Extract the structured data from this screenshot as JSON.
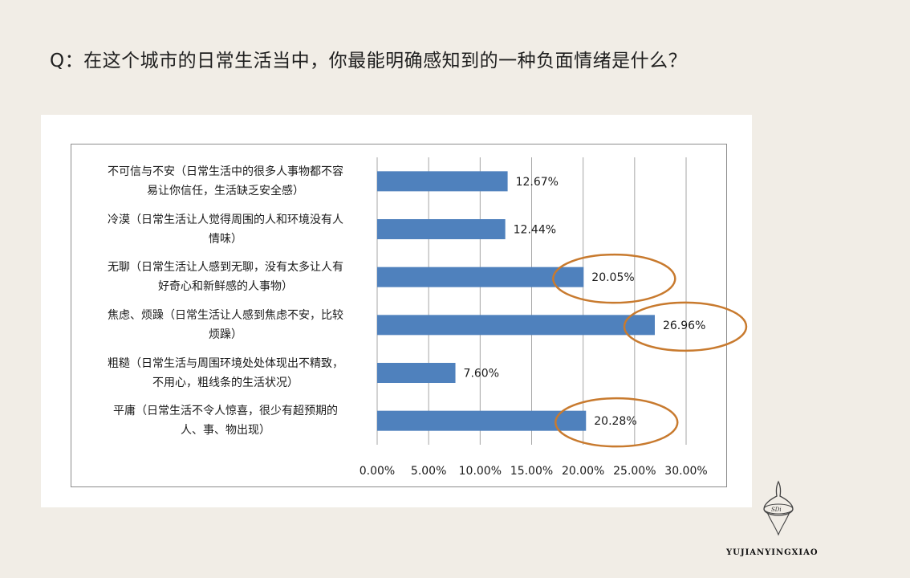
{
  "question": "Q：在这个城市的日常生活当中，你最能明确感知到的一种负面情绪是什么？",
  "brand": "YUJIANYINGXIAO",
  "logo_text": "SDi",
  "colors": {
    "bar": "#4f81bd",
    "highlight": "#c87a2e",
    "grid": "#a6a6a6"
  },
  "chart_data": {
    "type": "bar",
    "orientation": "horizontal",
    "title": "",
    "xlabel": "",
    "ylabel": "",
    "xlim": [
      0,
      30
    ],
    "grid": true,
    "legend": "none",
    "ticks": [
      "0.00%",
      "5.00%",
      "10.00%",
      "15.00%",
      "20.00%",
      "25.00%",
      "30.00%"
    ],
    "categories": [
      {
        "line1": "不可信与不安（日常生活中的很多人事物都不容",
        "line2": "易让你信任，生活缺乏安全感）"
      },
      {
        "line1": "冷漠（日常生活让人觉得周围的人和环境没有人",
        "line2": "情味）"
      },
      {
        "line1": "无聊（日常生活让人感到无聊，没有太多让人有",
        "line2": "好奇心和新鲜感的人事物）"
      },
      {
        "line1": "焦虑、烦躁（日常生活让人感到焦虑不安，比较",
        "line2": "烦躁）"
      },
      {
        "line1": "粗糙（日常生活与周围环境处处体现出不精致，",
        "line2": "不用心，粗线条的生活状况）"
      },
      {
        "line1": "平庸（日常生活不令人惊喜，很少有超预期的",
        "line2": "人、事、物出现）"
      }
    ],
    "values": [
      12.67,
      12.44,
      20.05,
      26.96,
      7.6,
      20.28
    ],
    "value_labels": [
      "12.67%",
      "12.44%",
      "20.05%",
      "26.96%",
      "7.60%",
      "20.28%"
    ],
    "highlighted": [
      2,
      3,
      5
    ]
  }
}
